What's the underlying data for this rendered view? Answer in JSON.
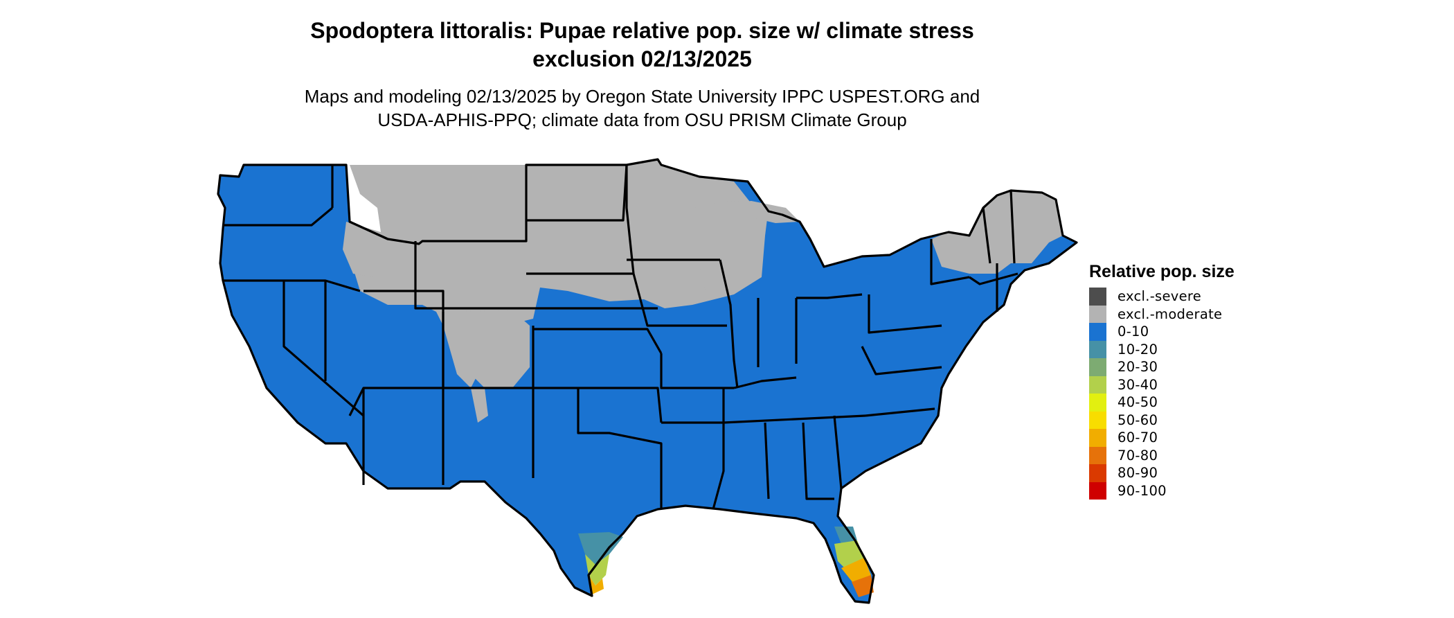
{
  "title": {
    "line1": "Spodoptera littoralis: Pupae relative pop. size w/ climate stress",
    "line2": "exclusion 02/13/2025"
  },
  "subtitle": {
    "line1": "Maps and modeling 02/13/2025 by Oregon State University IPPC USPEST.ORG and",
    "line2": "USDA-APHIS-PPQ; climate data from OSU PRISM Climate Group"
  },
  "colors": {
    "excl_severe": "#4d4d4d",
    "excl_moderate": "#b3b3b3",
    "c0_10": "#1a73d1",
    "c10_20": "#4691a6",
    "c20_30": "#7dab72",
    "c30_40": "#b2d04b",
    "c40_50": "#e2ef10",
    "c50_60": "#f8dd00",
    "c60_70": "#f1ad00",
    "c70_80": "#e6720a",
    "c80_90": "#da3a00",
    "c90_100": "#cf0000",
    "border": "#000000"
  },
  "legend": {
    "title": "Relative pop. size",
    "items": [
      {
        "label": "excl.-severe",
        "color": "#4d4d4d"
      },
      {
        "label": "excl.-moderate",
        "color": "#b3b3b3"
      },
      {
        "label": "0-10",
        "color": "#1a73d1"
      },
      {
        "label": "10-20",
        "color": "#4691a6"
      },
      {
        "label": "20-30",
        "color": "#7dab72"
      },
      {
        "label": "30-40",
        "color": "#b2d04b"
      },
      {
        "label": "40-50",
        "color": "#e2ef10"
      },
      {
        "label": "50-60",
        "color": "#f8dd00"
      },
      {
        "label": "60-70",
        "color": "#f1ad00"
      },
      {
        "label": "70-80",
        "color": "#e6720a"
      },
      {
        "label": "80-90",
        "color": "#da3a00"
      },
      {
        "label": "90-100",
        "color": "#cf0000"
      }
    ]
  }
}
